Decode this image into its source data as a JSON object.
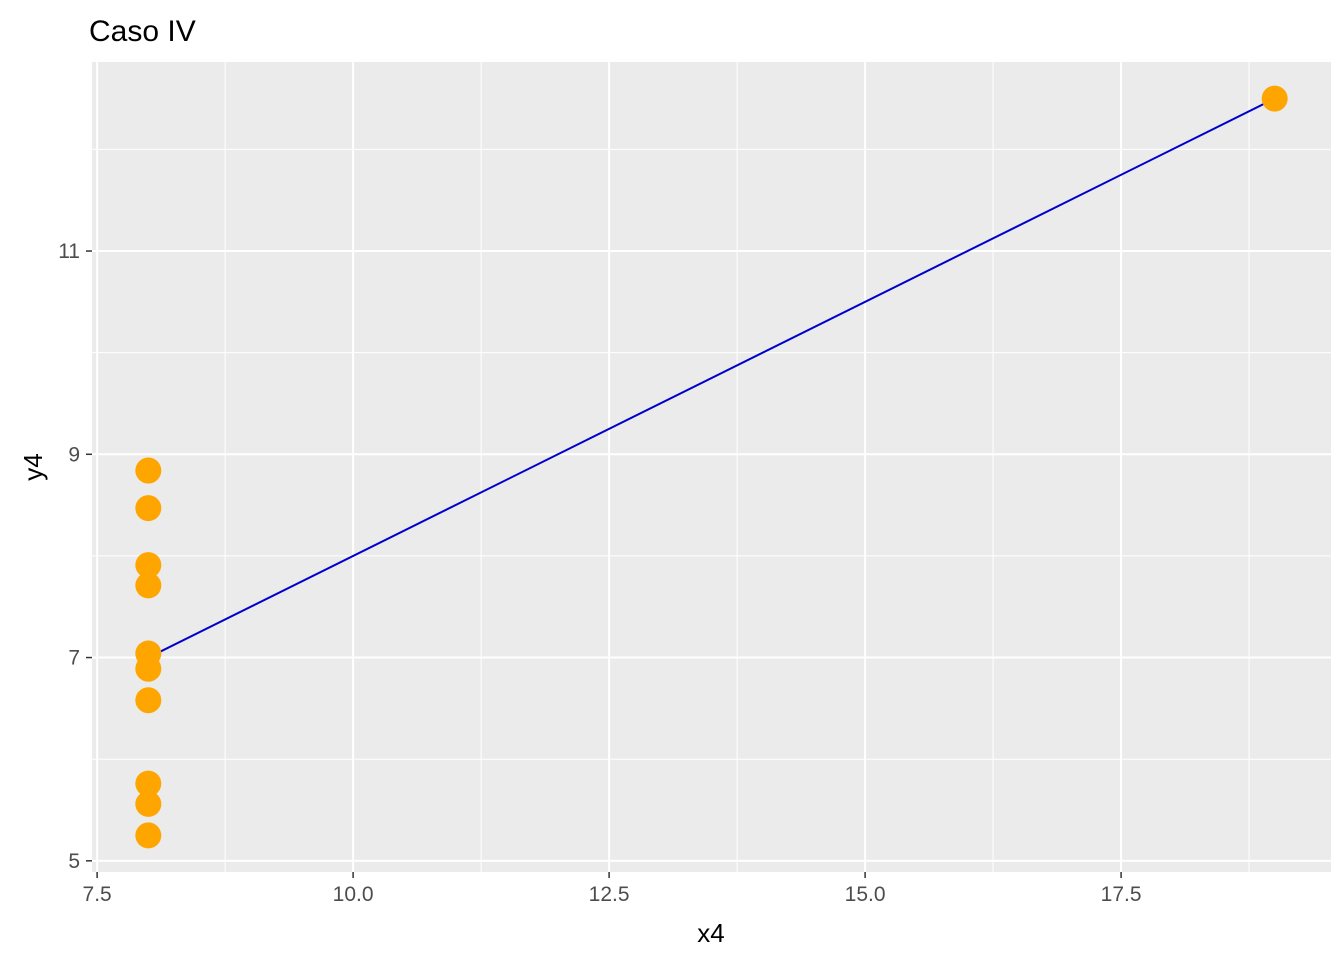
{
  "chart_data": {
    "type": "scatter",
    "title": "Caso IV",
    "xlabel": "x4",
    "ylabel": "y4",
    "xlim": [
      7.45,
      19.55
    ],
    "ylim": [
      4.89,
      12.86
    ],
    "x_ticks": [
      7.5,
      10.0,
      12.5,
      15.0,
      17.5
    ],
    "x_tick_labels": [
      "7.5",
      "10.0",
      "12.5",
      "15.0",
      "17.5"
    ],
    "y_ticks": [
      5,
      7,
      9,
      11
    ],
    "y_tick_labels": [
      "5",
      "7",
      "9",
      "11"
    ],
    "grid": true,
    "series": [
      {
        "type": "scatter",
        "color": "#FFA500",
        "points": [
          {
            "x": 8,
            "y": 6.58
          },
          {
            "x": 8,
            "y": 5.76
          },
          {
            "x": 8,
            "y": 7.71
          },
          {
            "x": 8,
            "y": 8.84
          },
          {
            "x": 8,
            "y": 8.47
          },
          {
            "x": 8,
            "y": 7.04
          },
          {
            "x": 8,
            "y": 5.25
          },
          {
            "x": 19,
            "y": 12.5
          },
          {
            "x": 8,
            "y": 5.56
          },
          {
            "x": 8,
            "y": 7.91
          },
          {
            "x": 8,
            "y": 6.89
          }
        ]
      },
      {
        "type": "line",
        "color": "#0000CD",
        "points": [
          {
            "x": 8,
            "y": 7.0
          },
          {
            "x": 19,
            "y": 12.5
          }
        ]
      }
    ],
    "panel_bg": "#EBEBEB",
    "grid_color": "#FFFFFF"
  }
}
